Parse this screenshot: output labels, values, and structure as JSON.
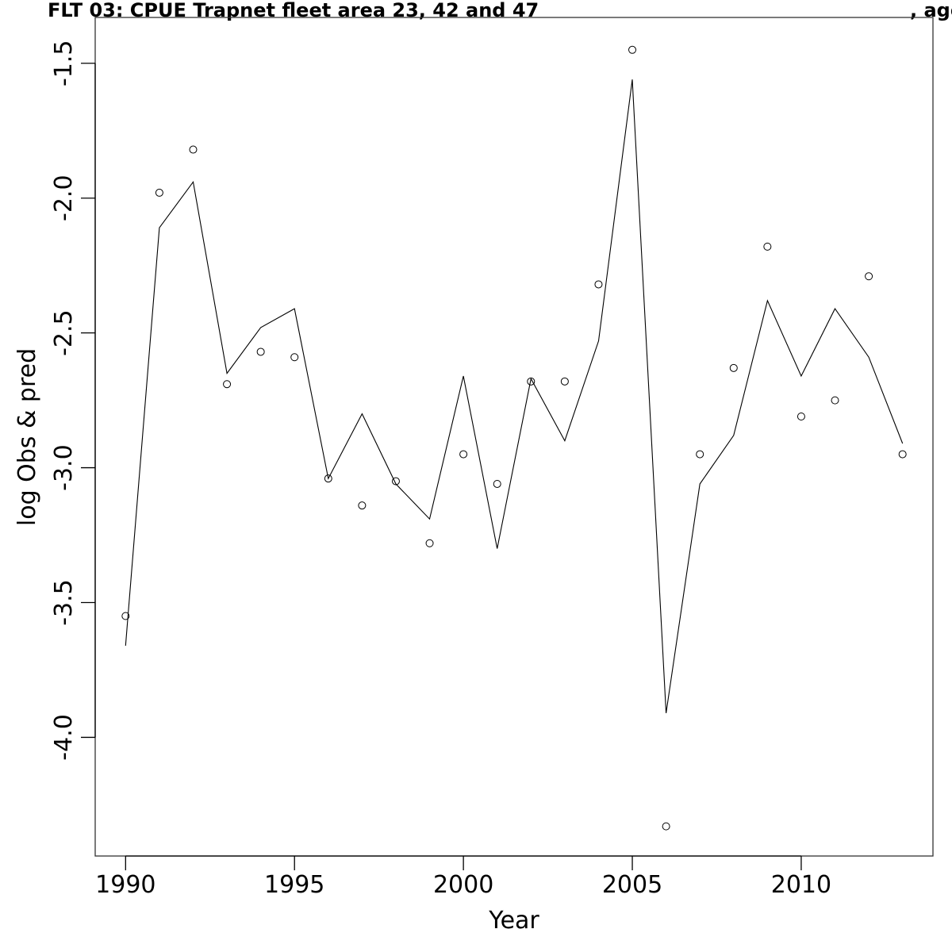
{
  "chart_data": {
    "type": "line",
    "title": "FLT 03: CPUE Trapnet fleet area 23, 42 and 47",
    "title_suffix": ", age",
    "xlabel": "Year",
    "ylabel": "log Obs & pred",
    "xlim": [
      1989.1,
      2013.9
    ],
    "ylim": [
      -4.44,
      -1.33
    ],
    "x_ticks": [
      1990,
      1995,
      2000,
      2005,
      2010
    ],
    "y_ticks": [
      -1.5,
      -2.0,
      -2.5,
      -3.0,
      -3.5,
      -4.0
    ],
    "x_tick_labels": [
      "1990",
      "1995",
      "2000",
      "2005",
      "2010"
    ],
    "y_tick_labels": [
      "-1.5",
      "-2.0",
      "-2.5",
      "-3.0",
      "-3.5",
      "-4.0"
    ],
    "grid": false,
    "x": [
      1990,
      1991,
      1992,
      1993,
      1994,
      1995,
      1996,
      1997,
      1998,
      1999,
      2000,
      2001,
      2002,
      2003,
      2004,
      2005,
      2006,
      2007,
      2008,
      2009,
      2010,
      2011,
      2012,
      2013
    ],
    "series": [
      {
        "style": "points",
        "values": [
          -3.55,
          -1.98,
          -1.82,
          -2.69,
          -2.57,
          -2.59,
          -3.04,
          -3.14,
          -3.05,
          -3.28,
          -2.95,
          -3.06,
          -2.68,
          -2.68,
          -2.32,
          -1.45,
          -4.33,
          -2.95,
          -2.63,
          -2.18,
          -2.81,
          -2.75,
          -2.29,
          -2.95
        ]
      },
      {
        "style": "line",
        "values": [
          -3.66,
          -2.11,
          -1.94,
          -2.65,
          -2.48,
          -2.41,
          -3.04,
          -2.8,
          -3.06,
          -3.19,
          -2.66,
          -3.3,
          -2.67,
          -2.9,
          -2.53,
          -1.56,
          -3.91,
          -3.06,
          -2.88,
          -2.38,
          -2.66,
          -2.41,
          -2.59,
          -2.91
        ]
      }
    ]
  }
}
